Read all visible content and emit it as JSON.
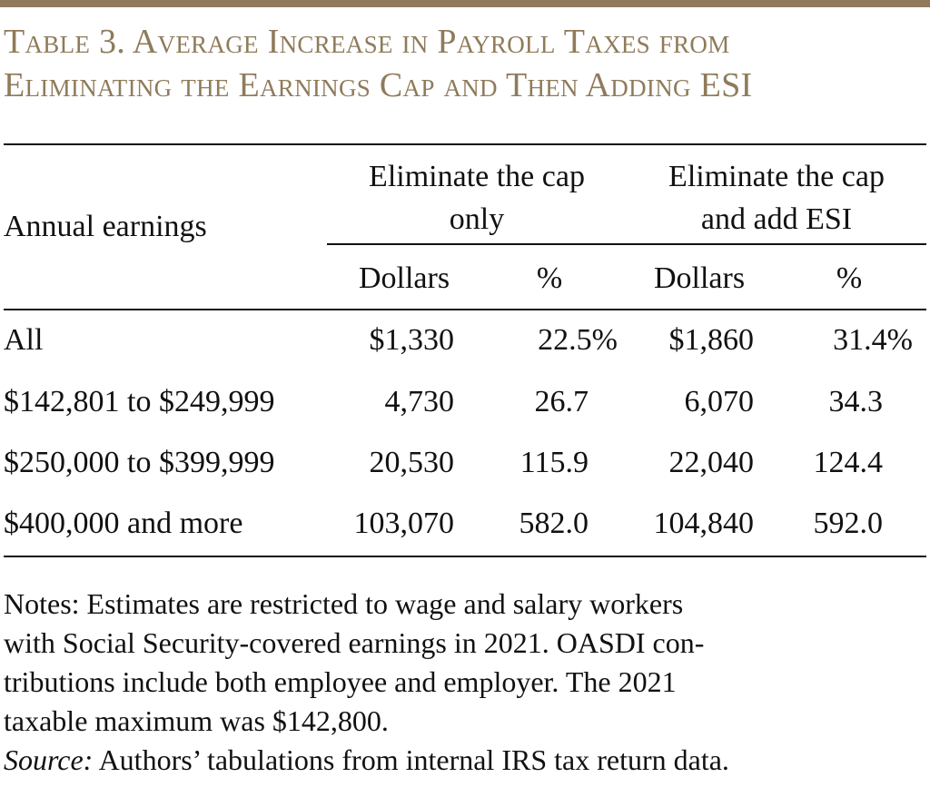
{
  "title": {
    "line1": "Table 3. Average Increase in Payroll Taxes from",
    "line2": "Eliminating the Earnings Cap and Then Adding ESI"
  },
  "header": {
    "row_label": "Annual earnings",
    "group1_line1": "Eliminate the cap",
    "group1_line2": "only",
    "group2_line1": "Eliminate the cap",
    "group2_line2": "and add ESI",
    "sub": [
      "Dollars",
      "%",
      "Dollars",
      "%"
    ]
  },
  "rows": [
    {
      "label": "All",
      "d1": "$1,330",
      "p1": "22.5%",
      "d2": "$1,860",
      "p2": "31.4%"
    },
    {
      "label": "$142,801 to $249,999",
      "d1": "4,730",
      "p1": "26.7",
      "d2": "6,070",
      "p2": "34.3"
    },
    {
      "label": "$250,000 to $399,999",
      "d1": "20,530",
      "p1": "115.9",
      "d2": "22,040",
      "p2": "124.4"
    },
    {
      "label": "$400,000 and more",
      "d1": "103,070",
      "p1": "582.0",
      "d2": "104,840",
      "p2": "592.0"
    }
  ],
  "notes": {
    "line1": "Notes: Estimates are restricted to wage and salary workers",
    "line2": "with Social Security-covered earnings in 2021.  OASDI con-",
    "line3": "tributions include both employee and employer.  The 2021",
    "line4": "taxable maximum was $142,800.",
    "source_label": "Source:",
    "source_text": " Authors’ tabulations from internal IRS tax return data."
  },
  "colors": {
    "accent": "#8f7b5a",
    "text": "#111111"
  }
}
